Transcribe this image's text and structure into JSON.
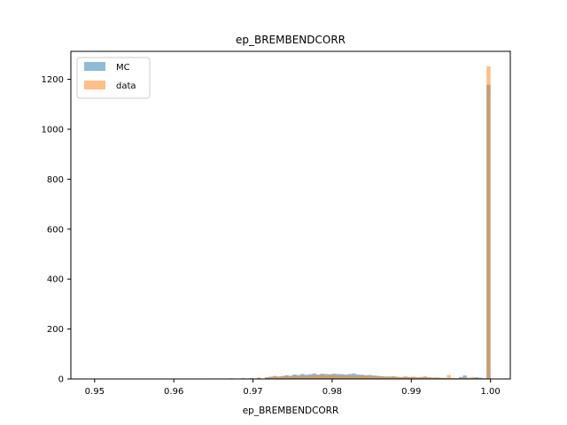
{
  "chart_data": {
    "type": "bar",
    "title": "ep_BREMBENDCORR",
    "xlabel": "ep_BREMBENDCORR",
    "ylabel": "",
    "xlim": [
      0.947,
      1.0025
    ],
    "ylim": [
      0,
      1312
    ],
    "bin_width": 0.0005,
    "x_ticks": [
      0.95,
      0.96,
      0.97,
      0.98,
      0.99,
      1.0
    ],
    "x_tick_labels": [
      "0.95",
      "0.96",
      "0.97",
      "0.98",
      "0.99",
      "1.00"
    ],
    "y_ticks": [
      0,
      200,
      400,
      600,
      800,
      1000,
      1200
    ],
    "y_tick_labels": [
      "0",
      "200",
      "400",
      "600",
      "800",
      "1000",
      "1200"
    ],
    "grid": false,
    "legend_position": "top-left",
    "series": [
      {
        "name": "MC",
        "color": "#1f77b4",
        "opacity": 0.5,
        "bins": [
          [
            0.9665,
            1
          ],
          [
            0.9685,
            2
          ],
          [
            0.9695,
            3
          ],
          [
            0.9705,
            5
          ],
          [
            0.9715,
            7
          ],
          [
            0.972,
            9
          ],
          [
            0.9725,
            12
          ],
          [
            0.973,
            10
          ],
          [
            0.9735,
            12
          ],
          [
            0.974,
            15
          ],
          [
            0.9745,
            13
          ],
          [
            0.975,
            18
          ],
          [
            0.9755,
            16
          ],
          [
            0.976,
            20
          ],
          [
            0.9765,
            17
          ],
          [
            0.977,
            19
          ],
          [
            0.9775,
            22
          ],
          [
            0.978,
            18
          ],
          [
            0.9785,
            21
          ],
          [
            0.979,
            20
          ],
          [
            0.9795,
            19
          ],
          [
            0.98,
            21
          ],
          [
            0.9805,
            20
          ],
          [
            0.981,
            19
          ],
          [
            0.9815,
            18
          ],
          [
            0.982,
            20
          ],
          [
            0.9825,
            22
          ],
          [
            0.983,
            18
          ],
          [
            0.9835,
            17
          ],
          [
            0.984,
            15
          ],
          [
            0.9845,
            16
          ],
          [
            0.985,
            14
          ],
          [
            0.9855,
            12
          ],
          [
            0.986,
            11
          ],
          [
            0.9865,
            10
          ],
          [
            0.987,
            9
          ],
          [
            0.9875,
            10
          ],
          [
            0.988,
            8
          ],
          [
            0.9885,
            7
          ],
          [
            0.989,
            9
          ],
          [
            0.9895,
            7
          ],
          [
            0.99,
            8
          ],
          [
            0.9905,
            6
          ],
          [
            0.991,
            7
          ],
          [
            0.9915,
            9
          ],
          [
            0.992,
            6
          ],
          [
            0.9925,
            5
          ],
          [
            0.993,
            6
          ],
          [
            0.9935,
            4
          ],
          [
            0.994,
            4
          ],
          [
            0.9945,
            3
          ],
          [
            0.995,
            3
          ],
          [
            0.9955,
            3
          ],
          [
            0.996,
            8
          ],
          [
            0.9965,
            14
          ],
          [
            0.997,
            5
          ],
          [
            0.9975,
            4
          ],
          [
            0.998,
            7
          ],
          [
            0.9985,
            5
          ],
          [
            0.999,
            3
          ],
          [
            0.9995,
            1178
          ]
        ]
      },
      {
        "name": "data",
        "color": "#ff7f0e",
        "opacity": 0.5,
        "bins": [
          [
            0.965,
            2
          ],
          [
            0.967,
            3
          ],
          [
            0.9685,
            4
          ],
          [
            0.9695,
            3
          ],
          [
            0.9705,
            5
          ],
          [
            0.9715,
            6
          ],
          [
            0.972,
            8
          ],
          [
            0.9725,
            10
          ],
          [
            0.973,
            9
          ],
          [
            0.9735,
            11
          ],
          [
            0.974,
            12
          ],
          [
            0.9745,
            10
          ],
          [
            0.975,
            13
          ],
          [
            0.9755,
            11
          ],
          [
            0.976,
            15
          ],
          [
            0.9765,
            12
          ],
          [
            0.977,
            14
          ],
          [
            0.9775,
            16
          ],
          [
            0.978,
            15
          ],
          [
            0.9785,
            17
          ],
          [
            0.979,
            14
          ],
          [
            0.9795,
            16
          ],
          [
            0.98,
            15
          ],
          [
            0.9805,
            14
          ],
          [
            0.981,
            16
          ],
          [
            0.9815,
            13
          ],
          [
            0.982,
            15
          ],
          [
            0.9825,
            14
          ],
          [
            0.983,
            12
          ],
          [
            0.9835,
            15
          ],
          [
            0.984,
            13
          ],
          [
            0.9845,
            12
          ],
          [
            0.985,
            11
          ],
          [
            0.9855,
            13
          ],
          [
            0.986,
            10
          ],
          [
            0.9865,
            9
          ],
          [
            0.987,
            10
          ],
          [
            0.9875,
            11
          ],
          [
            0.988,
            9
          ],
          [
            0.9885,
            8
          ],
          [
            0.989,
            10
          ],
          [
            0.9895,
            8
          ],
          [
            0.99,
            9
          ],
          [
            0.9905,
            7
          ],
          [
            0.991,
            8
          ],
          [
            0.9915,
            10
          ],
          [
            0.992,
            7
          ],
          [
            0.9925,
            6
          ],
          [
            0.993,
            5
          ],
          [
            0.9935,
            5
          ],
          [
            0.994,
            4
          ],
          [
            0.9945,
            16
          ],
          [
            0.995,
            4
          ],
          [
            0.9955,
            3
          ],
          [
            0.996,
            5
          ],
          [
            0.9965,
            6
          ],
          [
            0.997,
            3
          ],
          [
            0.9975,
            8
          ],
          [
            0.998,
            4
          ],
          [
            0.9985,
            3
          ],
          [
            0.999,
            2
          ],
          [
            0.9995,
            1252
          ]
        ]
      }
    ]
  }
}
